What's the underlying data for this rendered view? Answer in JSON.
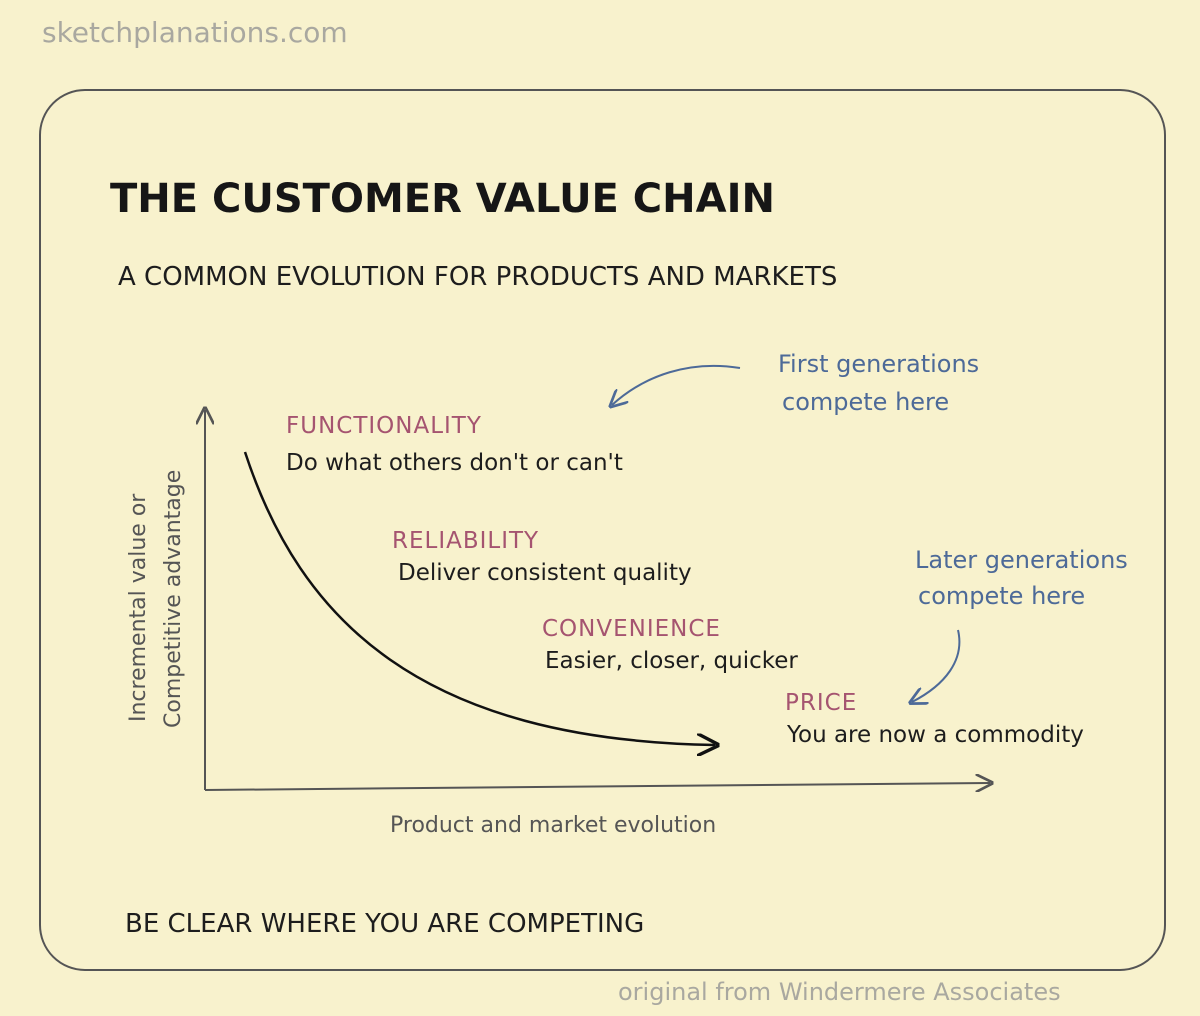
{
  "site": "sketchplanations.com",
  "title": "THE CUSTOMER VALUE CHAIN",
  "subtitle": "A COMMON EVOLUTION FOR PRODUCTS AND MARKETS",
  "y_axis_label": [
    "Incremental value or",
    "Competitive advantage"
  ],
  "x_axis_label": "Product and market evolution",
  "stages": [
    {
      "name": "FUNCTIONALITY",
      "description": "Do what others don't or can't"
    },
    {
      "name": "RELIABILITY",
      "description": "Deliver consistent quality"
    },
    {
      "name": "CONVENIENCE",
      "description": "Easier, closer, quicker"
    },
    {
      "name": "PRICE",
      "description": "You are now a commodity"
    }
  ],
  "annotations": [
    {
      "lines": [
        "First generations",
        "compete here"
      ]
    },
    {
      "lines": [
        "Later generations",
        "compete here"
      ]
    }
  ],
  "footer": "BE CLEAR WHERE YOU ARE COMPETING",
  "credit": "original from Windermere Associates"
}
